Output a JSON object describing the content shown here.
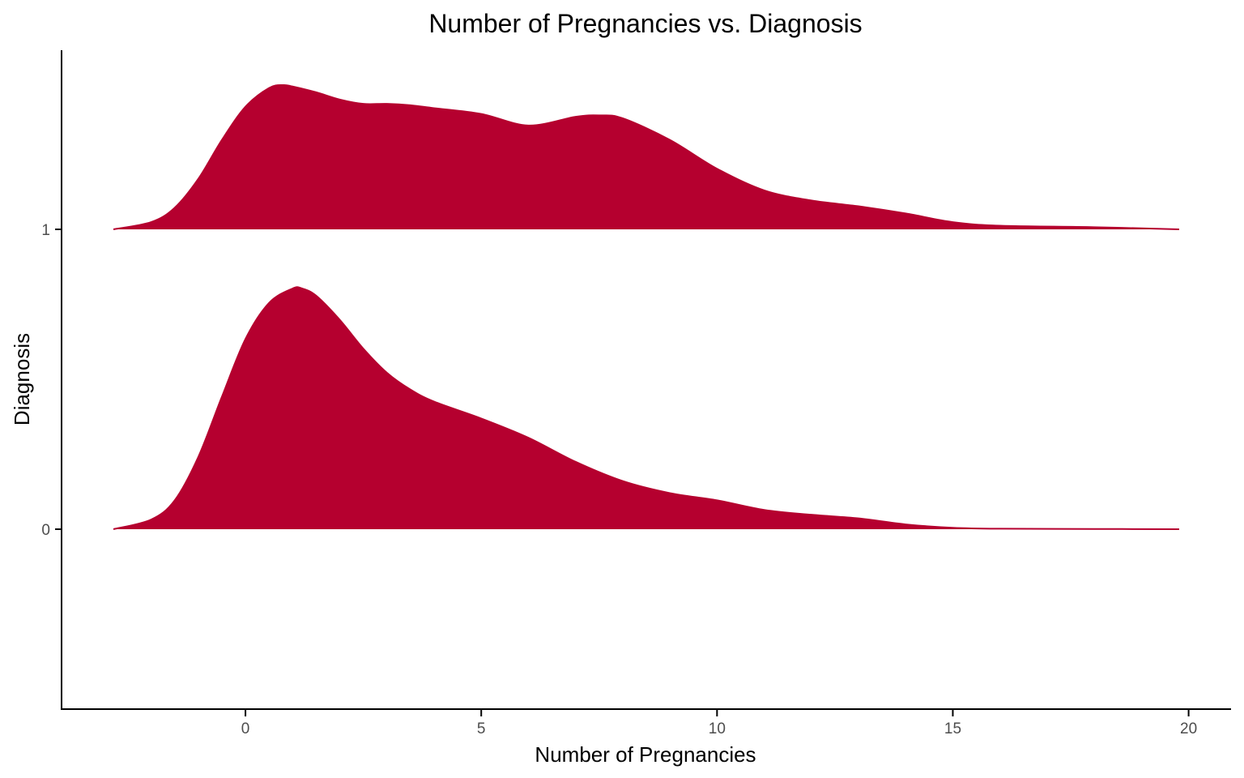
{
  "chart_data": {
    "type": "area",
    "subtype": "ridgeline",
    "title": "Number of Pregnancies vs. Diagnosis",
    "xlabel": "Number of Pregnancies",
    "ylabel": "Diagnosis",
    "xlim": [
      -3.9,
      20.9
    ],
    "x_ticks": [
      0,
      5,
      10,
      15,
      20
    ],
    "y_categories": [
      "0",
      "1"
    ],
    "fill_color": "#B5002F",
    "grid": false,
    "legend": "none",
    "series": [
      {
        "name": "0",
        "x": [
          -2.8,
          -2.0,
          -1.5,
          -1.0,
          -0.5,
          0.0,
          0.5,
          1.0,
          1.2,
          1.5,
          2.0,
          2.5,
          3.0,
          3.5,
          4.0,
          5.0,
          6.0,
          7.0,
          8.0,
          9.0,
          10.0,
          11.0,
          12.0,
          13.0,
          14.0,
          15.0,
          16.0,
          18.0,
          19.8
        ],
        "density": [
          0.0,
          0.04,
          0.12,
          0.3,
          0.55,
          0.79,
          0.94,
          1.0,
          1.0,
          0.97,
          0.87,
          0.75,
          0.65,
          0.58,
          0.53,
          0.46,
          0.38,
          0.28,
          0.2,
          0.15,
          0.12,
          0.08,
          0.06,
          0.045,
          0.02,
          0.006,
          0.002,
          0.001,
          0.0
        ]
      },
      {
        "name": "1",
        "x": [
          -2.8,
          -2.0,
          -1.5,
          -1.0,
          -0.5,
          0.0,
          0.5,
          0.8,
          1.0,
          1.5,
          2.0,
          2.5,
          3.0,
          3.5,
          4.0,
          5.0,
          6.0,
          7.0,
          7.5,
          8.0,
          9.0,
          10.0,
          11.0,
          12.0,
          13.0,
          14.0,
          15.0,
          16.0,
          18.0,
          19.8
        ],
        "density": [
          0.0,
          0.05,
          0.15,
          0.35,
          0.62,
          0.85,
          0.98,
          1.0,
          0.99,
          0.95,
          0.9,
          0.87,
          0.87,
          0.86,
          0.84,
          0.8,
          0.72,
          0.78,
          0.79,
          0.77,
          0.62,
          0.42,
          0.27,
          0.2,
          0.16,
          0.11,
          0.05,
          0.025,
          0.015,
          0.0
        ]
      }
    ]
  }
}
